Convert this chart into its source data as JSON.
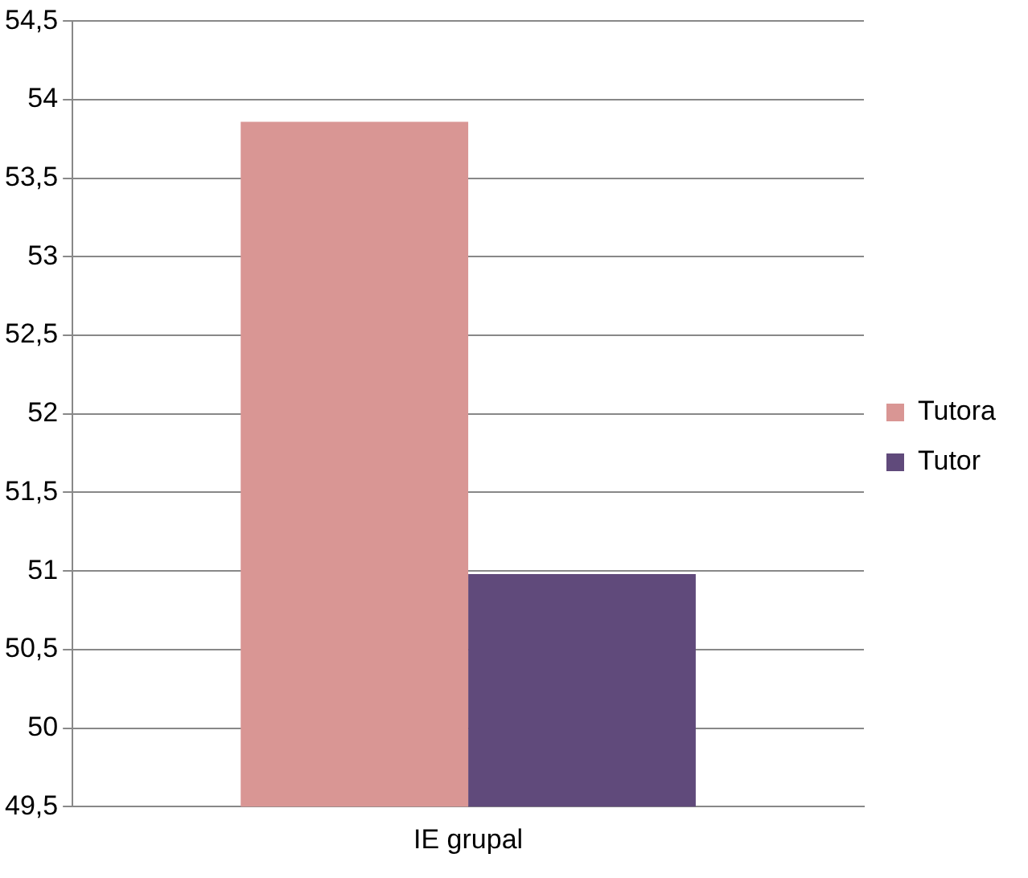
{
  "chart_data": {
    "type": "bar",
    "categories": [
      "IE grupal"
    ],
    "series": [
      {
        "name": "Tutora",
        "color": "#d99694",
        "values": [
          53.86
        ]
      },
      {
        "name": "Tutor",
        "color": "#604a7b",
        "values": [
          50.98
        ]
      }
    ],
    "ylim": [
      49.5,
      54.5
    ],
    "yticks": [
      {
        "value": 49.5,
        "label": "49,5"
      },
      {
        "value": 50,
        "label": "50"
      },
      {
        "value": 50.5,
        "label": "50,5"
      },
      {
        "value": 51,
        "label": "51"
      },
      {
        "value": 51.5,
        "label": "51,5"
      },
      {
        "value": 52,
        "label": "52"
      },
      {
        "value": 52.5,
        "label": "52,5"
      },
      {
        "value": 53,
        "label": "53"
      },
      {
        "value": 53.5,
        "label": "53,5"
      },
      {
        "value": 54,
        "label": "54"
      },
      {
        "value": 54.5,
        "label": "54,5"
      }
    ],
    "grid": "y",
    "legend": "right"
  }
}
